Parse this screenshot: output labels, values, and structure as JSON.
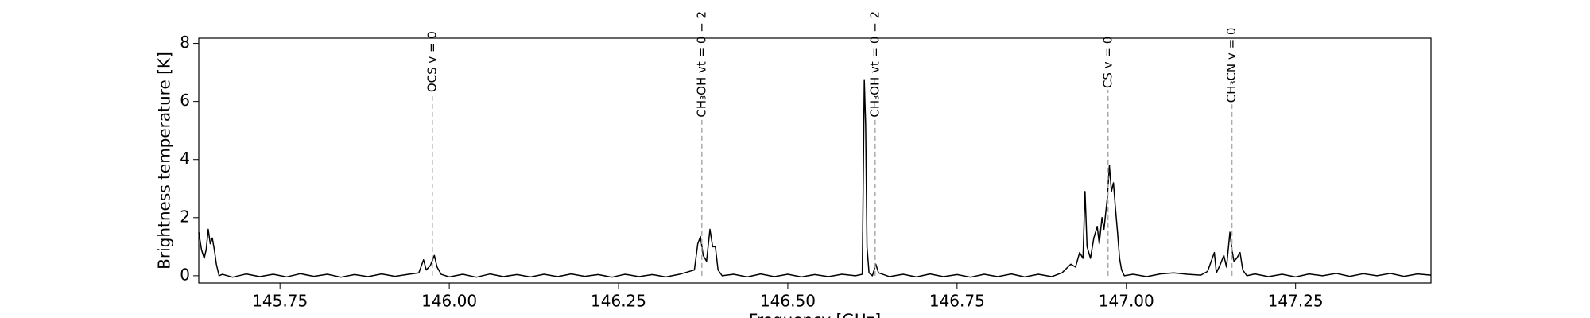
{
  "chart_data": {
    "type": "line",
    "x_label": "Frequency [GHz]",
    "y_label": "Brightness temperature [K]",
    "xlim": [
      145.63,
      147.45
    ],
    "ylim": [
      -0.25,
      8.18
    ],
    "xticks": [
      145.75,
      {
        "value": 146,
        "label": "146.00"
      },
      146.25,
      {
        "value": 146.5,
        "label": "146.50"
      },
      146.75,
      {
        "value": 147,
        "label": "147.00"
      },
      147.25
    ],
    "yticks": [
      0,
      2,
      4,
      6,
      8
    ],
    "x": [
      145.63,
      145.634,
      145.638,
      145.641,
      145.644,
      145.647,
      145.65,
      145.653,
      145.656,
      145.66,
      145.665,
      145.68,
      145.7,
      145.72,
      145.74,
      145.76,
      145.78,
      145.8,
      145.82,
      145.84,
      145.86,
      145.88,
      145.9,
      145.92,
      145.94,
      145.955,
      145.962,
      145.966,
      145.972,
      145.978,
      145.982,
      145.988,
      146.0,
      146.02,
      146.04,
      146.06,
      146.08,
      146.1,
      146.12,
      146.14,
      146.16,
      146.18,
      146.2,
      146.22,
      146.24,
      146.26,
      146.28,
      146.3,
      146.32,
      146.34,
      146.362,
      146.367,
      146.371,
      146.375,
      146.38,
      146.385,
      146.389,
      146.393,
      146.397,
      146.403,
      146.42,
      146.44,
      146.46,
      146.48,
      146.5,
      146.52,
      146.54,
      146.56,
      146.58,
      146.6,
      146.61,
      146.613,
      146.615,
      146.617,
      146.62,
      146.625,
      146.63,
      146.634,
      146.65,
      146.67,
      146.69,
      146.71,
      146.73,
      146.75,
      146.77,
      146.79,
      146.81,
      146.83,
      146.85,
      146.87,
      146.89,
      146.905,
      146.918,
      146.925,
      146.931,
      146.936,
      146.939,
      146.942,
      146.947,
      146.952,
      146.957,
      146.96,
      146.964,
      146.967,
      146.972,
      146.975,
      146.978,
      146.981,
      146.984,
      146.987,
      146.99,
      146.993,
      146.997,
      147.01,
      147.03,
      147.05,
      147.07,
      147.09,
      147.11,
      147.12,
      147.13,
      147.133,
      147.139,
      147.144,
      147.148,
      147.153,
      147.156,
      147.159,
      147.163,
      147.168,
      147.172,
      147.178,
      147.19,
      147.21,
      147.23,
      147.25,
      147.27,
      147.29,
      147.31,
      147.33,
      147.35,
      147.37,
      147.39,
      147.41,
      147.43,
      147.45
    ],
    "series": [
      {
        "color": "#000000",
        "values": [
          1.5,
          0.9,
          0.6,
          0.9,
          1.6,
          1.1,
          1.3,
          0.9,
          0.4,
          0.0,
          0.05,
          -0.05,
          0.06,
          -0.03,
          0.05,
          -0.04,
          0.07,
          -0.02,
          0.05,
          -0.05,
          0.04,
          -0.03,
          0.06,
          -0.02,
          0.05,
          0.1,
          0.55,
          0.2,
          0.35,
          0.7,
          0.3,
          0.05,
          -0.04,
          0.05,
          -0.05,
          0.06,
          -0.03,
          0.04,
          -0.04,
          0.05,
          -0.03,
          0.06,
          -0.02,
          0.04,
          -0.05,
          0.05,
          -0.03,
          0.04,
          -0.04,
          0.05,
          0.2,
          1.1,
          1.35,
          0.7,
          0.5,
          1.6,
          1.0,
          1.0,
          0.2,
          0.0,
          0.05,
          -0.04,
          0.06,
          -0.03,
          0.05,
          -0.04,
          0.04,
          -0.03,
          0.05,
          0.0,
          0.05,
          6.75,
          5.2,
          1.0,
          0.1,
          0.0,
          0.4,
          0.1,
          -0.03,
          0.05,
          -0.04,
          0.06,
          -0.03,
          0.04,
          -0.05,
          0.05,
          -0.03,
          0.06,
          -0.04,
          0.05,
          -0.03,
          0.1,
          0.4,
          0.3,
          0.8,
          0.6,
          2.9,
          1.0,
          0.6,
          1.3,
          1.7,
          1.1,
          2.0,
          1.6,
          2.7,
          3.8,
          2.9,
          3.2,
          2.3,
          1.5,
          0.6,
          0.2,
          0.0,
          0.05,
          -0.03,
          0.06,
          0.1,
          0.05,
          0.02,
          0.15,
          0.8,
          0.1,
          0.4,
          0.7,
          0.3,
          1.5,
          0.9,
          0.5,
          0.6,
          0.8,
          0.2,
          0.0,
          0.06,
          -0.03,
          0.05,
          -0.04,
          0.06,
          0.0,
          0.08,
          -0.02,
          0.07,
          0.0,
          0.08,
          -0.02,
          0.06,
          0.02
        ]
      }
    ],
    "lines": [
      {
        "x": 145.975,
        "y": 6.26,
        "label": "OCS v = 0"
      },
      {
        "x": 146.373,
        "y": 5.4,
        "label": "CH₃OH vt = 0 − 2"
      },
      {
        "x": 146.629,
        "y": 5.4,
        "label": "CH₃OH vt = 0 − 2"
      },
      {
        "x": 146.973,
        "y": 6.4,
        "label": "CS v = 0"
      },
      {
        "x": 147.156,
        "y": 5.9,
        "label": "CH₃CN v = 0"
      }
    ]
  }
}
